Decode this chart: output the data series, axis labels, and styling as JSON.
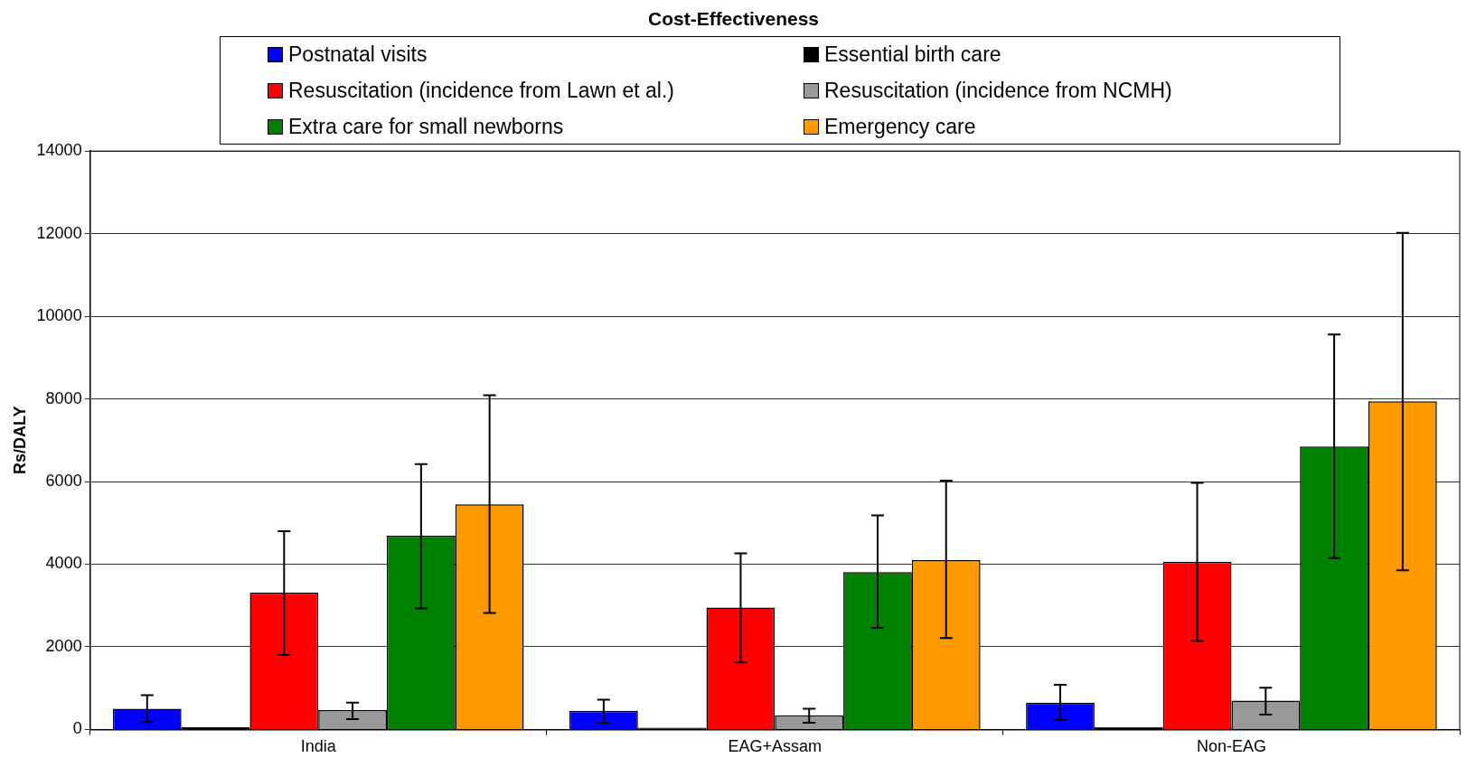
{
  "chart_data": {
    "type": "bar",
    "title": "Cost-Effectiveness",
    "ylabel": "Rs/DALY",
    "categories": [
      "India",
      "EAG+Assam",
      "Non-EAG"
    ],
    "series": [
      {
        "name": "Postnatal visits",
        "color": "#0000ff",
        "values": [
          500,
          450,
          650
        ],
        "errors": [
          [
            180,
            830
          ],
          [
            160,
            720
          ],
          [
            230,
            1080
          ]
        ]
      },
      {
        "name": "Essential birth care",
        "color": "#000000",
        "values": [
          50,
          40,
          60
        ]
      },
      {
        "name": "Resuscitation (incidence from Lawn et al.)",
        "color": "#ff0000",
        "values": [
          3310,
          2950,
          4060
        ],
        "errors": [
          [
            1800,
            4800
          ],
          [
            1620,
            4260
          ],
          [
            2140,
            5970
          ]
        ]
      },
      {
        "name": "Resuscitation (incidence from NCMH)",
        "color": "#999999",
        "values": [
          470,
          340,
          700
        ],
        "errors": [
          [
            250,
            650
          ],
          [
            160,
            500
          ],
          [
            360,
            1010
          ]
        ]
      },
      {
        "name": "Extra care for small newborns",
        "color": "#008000",
        "values": [
          4690,
          3810,
          6850
        ],
        "errors": [
          [
            2930,
            6420
          ],
          [
            2460,
            5180
          ],
          [
            4150,
            9560
          ]
        ]
      },
      {
        "name": "Emergency care",
        "color": "#ff9900",
        "values": [
          5450,
          4100,
          7940
        ],
        "errors": [
          [
            2820,
            8090
          ],
          [
            2210,
            6020
          ],
          [
            3850,
            12020
          ]
        ]
      }
    ],
    "ylim": [
      0,
      14000
    ],
    "yticks": [
      0,
      2000,
      4000,
      6000,
      8000,
      10000,
      12000,
      14000
    ],
    "grid": "y",
    "legend": "top"
  }
}
